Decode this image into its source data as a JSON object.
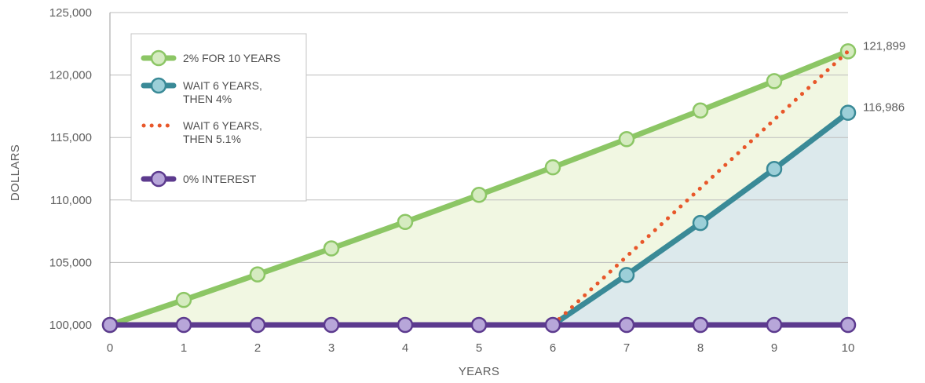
{
  "chart_data": {
    "type": "line",
    "xlabel": "YEARS",
    "ylabel": "DOLLARS",
    "x": [
      0,
      1,
      2,
      3,
      4,
      5,
      6,
      7,
      8,
      9,
      10
    ],
    "xlim": [
      0,
      10
    ],
    "ylim": [
      100000,
      125000
    ],
    "yticks": [
      "100,000",
      "105,000",
      "110,000",
      "115,000",
      "120,000",
      "125,000"
    ],
    "grid": "horizontal",
    "legend_position": "top-left",
    "series": [
      {
        "name": "2% FOR 10 YEARS",
        "color": "#8cc665",
        "marker_fill": "#d5ebc0",
        "style": "solid",
        "area_fill": "#f1f7e2",
        "x": [
          0,
          1,
          2,
          3,
          4,
          5,
          6,
          7,
          8,
          9,
          10
        ],
        "values": [
          100000,
          102000,
          104040,
          106121,
          108243,
          110408,
          112616,
          114869,
          117166,
          119509,
          121899
        ]
      },
      {
        "name": "WAIT 6 YEARS, THEN 4%",
        "name_lines": [
          "WAIT 6 YEARS,",
          "THEN 4%"
        ],
        "color": "#3a8a97",
        "marker_fill": "#9ccfd8",
        "style": "solid",
        "area_fill": "#dce9ec",
        "x": [
          6,
          7,
          8,
          9,
          10
        ],
        "values": [
          100000,
          104000,
          108160,
          112486,
          116986
        ]
      },
      {
        "name": "WAIT 6 YEARS, THEN 5.1%",
        "name_lines": [
          "WAIT 6 YEARS,",
          "THEN 5.1%"
        ],
        "color": "#e8572a",
        "style": "dotted",
        "x": [
          6,
          10
        ],
        "values": [
          100000,
          121899
        ]
      },
      {
        "name": "0% INTEREST",
        "color": "#5c3a8e",
        "marker_fill": "#b7a6d9",
        "style": "solid",
        "x": [
          0,
          1,
          2,
          3,
          4,
          5,
          6,
          7,
          8,
          9,
          10
        ],
        "values": [
          100000,
          100000,
          100000,
          100000,
          100000,
          100000,
          100000,
          100000,
          100000,
          100000,
          100000
        ]
      }
    ],
    "annotations": [
      {
        "text": "121,899",
        "x": 10,
        "y": 121899
      },
      {
        "text": "116,986",
        "x": 10,
        "y": 116986
      }
    ]
  }
}
